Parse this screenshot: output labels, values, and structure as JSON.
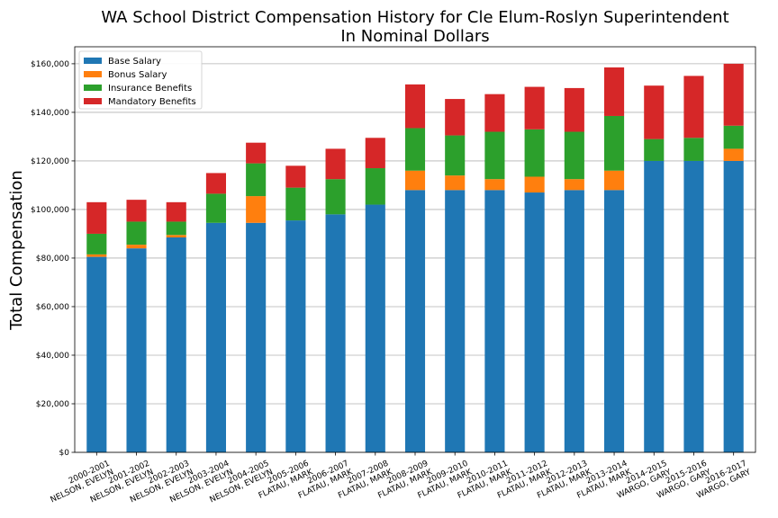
{
  "chart_data": {
    "type": "bar",
    "stacked": true,
    "title": "WA School District Compensation History for Cle Elum-Roslyn Superintendent",
    "subtitle": "In Nominal Dollars",
    "xlabel": "",
    "ylabel": "Total Compensation",
    "ylim": [
      0,
      167000
    ],
    "grid": true,
    "legend_position": "top-left",
    "categories": [
      [
        "2000-2001",
        "NELSON, EVELYN"
      ],
      [
        "2001-2002",
        "NELSON, EVELYN"
      ],
      [
        "2002-2003",
        "NELSON, EVELYN"
      ],
      [
        "2003-2004",
        "NELSON, EVELYN"
      ],
      [
        "2004-2005",
        "NELSON, EVELYN"
      ],
      [
        "2005-2006",
        "FLATAU, MARK"
      ],
      [
        "2006-2007",
        "FLATAU, MARK"
      ],
      [
        "2007-2008",
        "FLATAU, MARK"
      ],
      [
        "2008-2009",
        "FLATAU, MARK"
      ],
      [
        "2009-2010",
        "FLATAU, MARK"
      ],
      [
        "2010-2011",
        "FLATAU, MARK"
      ],
      [
        "2011-2012",
        "FLATAU, MARK"
      ],
      [
        "2012-2013",
        "FLATAU, MARK"
      ],
      [
        "2013-2014",
        "FLATAU, MARK"
      ],
      [
        "2014-2015",
        "WARGO, GARY"
      ],
      [
        "2015-2016",
        "WARGO, GARY"
      ],
      [
        "2016-2017",
        "WARGO, GARY"
      ]
    ],
    "yticks": [
      {
        "value": 0,
        "label": "$0"
      },
      {
        "value": 20000,
        "label": "$20,000"
      },
      {
        "value": 40000,
        "label": "$40,000"
      },
      {
        "value": 60000,
        "label": "$60,000"
      },
      {
        "value": 80000,
        "label": "$80,000"
      },
      {
        "value": 100000,
        "label": "$100,000"
      },
      {
        "value": 120000,
        "label": "$120,000"
      },
      {
        "value": 140000,
        "label": "$140,000"
      },
      {
        "value": 160000,
        "label": "$160,000"
      }
    ],
    "series": [
      {
        "name": "Base Salary",
        "color": "#1f77b4",
        "values": [
          80500,
          84000,
          88500,
          94500,
          94500,
          95500,
          98000,
          102000,
          108000,
          108000,
          108000,
          107000,
          108000,
          108000,
          120000,
          120000,
          120000
        ]
      },
      {
        "name": "Bonus Salary",
        "color": "#ff7f0e",
        "values": [
          1000,
          1500,
          1000,
          0,
          11000,
          0,
          0,
          0,
          8000,
          6000,
          4500,
          6500,
          4500,
          8000,
          0,
          0,
          5000
        ]
      },
      {
        "name": "Insurance Benefits",
        "color": "#2ca02c",
        "values": [
          8500,
          9500,
          5500,
          12000,
          13500,
          13500,
          14500,
          15000,
          17500,
          16500,
          19500,
          19500,
          19500,
          22500,
          9000,
          9500,
          9500
        ]
      },
      {
        "name": "Mandatory Benefits",
        "color": "#d62728",
        "values": [
          13000,
          9000,
          8000,
          8500,
          8500,
          9000,
          12500,
          12500,
          18000,
          15000,
          15500,
          17500,
          18000,
          20000,
          22000,
          25500,
          25500
        ]
      }
    ]
  }
}
